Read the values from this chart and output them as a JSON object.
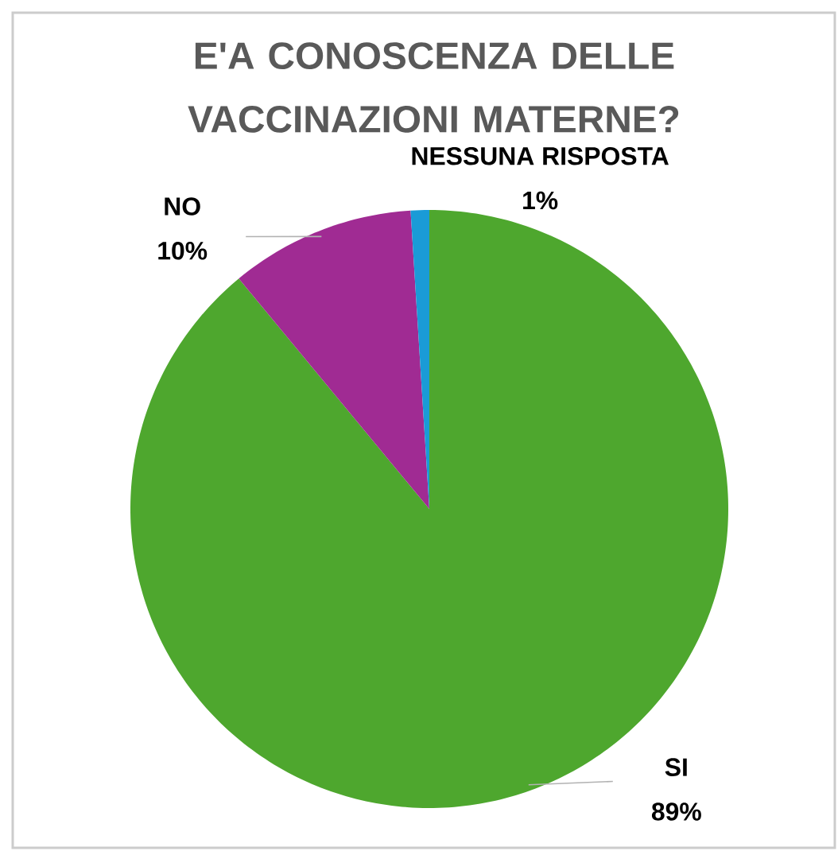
{
  "chart_data": {
    "type": "pie",
    "title": "E'A CONOSCENZA DELLE VACCINAZIONI MATERNE?",
    "categories": [
      "SI",
      "NO",
      "NESSUNA RISPOSTA"
    ],
    "values": [
      89,
      10,
      1
    ],
    "value_labels": [
      "89%",
      "10%",
      "1%"
    ],
    "colors": [
      "#4ea72e",
      "#a02b93",
      "#1a9bd7"
    ]
  }
}
